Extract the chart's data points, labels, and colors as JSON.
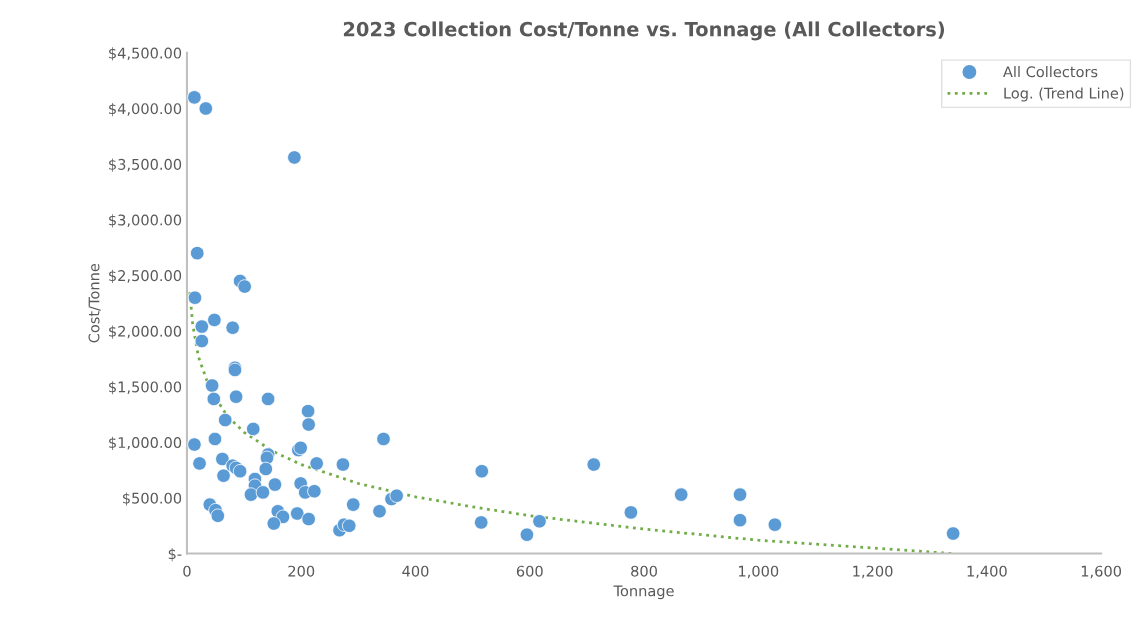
{
  "chart_data": {
    "type": "scatter",
    "title": "2023 Collection Cost/Tonne vs. Tonnage (All Collectors)",
    "xlabel": "Tonnage",
    "ylabel": "Cost/Tonne",
    "xlim": [
      0,
      1600
    ],
    "xticks": [
      0,
      200,
      400,
      600,
      800,
      {
        "value": 1000,
        "label": "1,000"
      },
      {
        "value": 1200,
        "label": "1,200"
      },
      {
        "value": 1400,
        "label": "1,400"
      },
      {
        "value": 1600,
        "label": "1,600"
      }
    ],
    "ylim": [
      0,
      4500
    ],
    "yticks": [
      {
        "value": 0,
        "label": "$-"
      },
      {
        "value": 500,
        "label": "$500.00"
      },
      {
        "value": 1000,
        "label": "$1,000.00"
      },
      {
        "value": 1500,
        "label": "$1,500.00"
      },
      {
        "value": 2000,
        "label": "$2,000.00"
      },
      {
        "value": 2500,
        "label": "$2,500.00"
      },
      {
        "value": 3000,
        "label": "$3,000.00"
      },
      {
        "value": 3500,
        "label": "$3,500.00"
      },
      {
        "value": 4000,
        "label": "$4,000.00"
      },
      {
        "value": 4500,
        "label": "$4,500.00"
      }
    ],
    "grid": false,
    "legend": "top right",
    "series": [
      {
        "name": "All Collectors",
        "marker": "circle",
        "color": "#5b9bd5",
        "x": [
          13,
          33,
          188,
          18,
          93,
          101,
          14,
          48,
          26,
          80,
          26,
          84,
          84,
          44,
          47,
          86,
          142,
          212,
          213,
          67,
          116,
          49,
          13,
          344,
          195,
          199,
          142,
          140,
          22,
          62,
          227,
          273,
          80,
          86,
          93,
          64,
          138,
          119,
          119,
          154,
          199,
          207,
          223,
          112,
          133,
          358,
          367,
          291,
          40,
          50,
          54,
          159,
          168,
          193,
          337,
          213,
          152,
          267,
          275,
          284,
          516,
          515,
          595,
          617,
          712,
          777,
          865,
          968,
          968,
          1029,
          1341
        ],
        "values": [
          4100,
          4000,
          3560,
          2700,
          2450,
          2400,
          2300,
          2100,
          2040,
          2030,
          1910,
          1670,
          1650,
          1510,
          1390,
          1410,
          1390,
          1280,
          1160,
          1200,
          1120,
          1030,
          980,
          1030,
          930,
          950,
          890,
          860,
          810,
          850,
          810,
          800,
          790,
          770,
          740,
          700,
          760,
          670,
          610,
          620,
          630,
          550,
          560,
          530,
          550,
          490,
          520,
          440,
          440,
          390,
          340,
          380,
          330,
          360,
          380,
          310,
          270,
          210,
          260,
          250,
          740,
          280,
          170,
          290,
          800,
          370,
          530,
          530,
          300,
          260,
          180
        ]
      },
      {
        "name": "Log. (Trend Line)",
        "type": "line",
        "line_style": "dotted",
        "marker": "none",
        "color": "#70ad47",
        "x": [
          5,
          10,
          20,
          40,
          70,
          100,
          150,
          200,
          300,
          400,
          500,
          600,
          800,
          1000,
          1200,
          1340
        ],
        "values": [
          2350,
          2060,
          1770,
          1480,
          1240,
          1090,
          920,
          800,
          630,
          510,
          420,
          340,
          220,
          120,
          50,
          0
        ]
      }
    ]
  }
}
